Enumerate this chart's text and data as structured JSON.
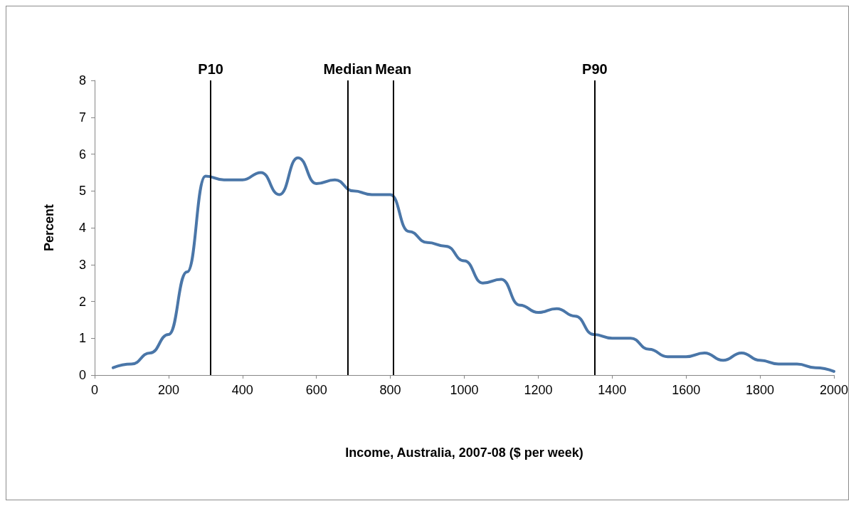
{
  "chart_data": {
    "type": "line",
    "xlabel": "Income, Australia, 2007-08 ($ per week)",
    "ylabel": "Percent",
    "x": [
      50,
      100,
      150,
      200,
      250,
      300,
      350,
      400,
      450,
      500,
      550,
      600,
      650,
      700,
      750,
      800,
      850,
      900,
      950,
      1000,
      1050,
      1100,
      1150,
      1200,
      1250,
      1300,
      1350,
      1400,
      1450,
      1500,
      1550,
      1600,
      1650,
      1700,
      1750,
      1800,
      1850,
      1900,
      1950,
      2000
    ],
    "series": [
      {
        "color": "#4a76a8",
        "values": [
          0.2,
          0.3,
          0.6,
          1.1,
          2.8,
          5.4,
          5.3,
          5.3,
          5.5,
          4.9,
          5.9,
          5.2,
          5.3,
          5.0,
          4.9,
          4.9,
          3.9,
          3.6,
          3.5,
          3.1,
          2.5,
          2.6,
          1.9,
          1.7,
          1.8,
          1.6,
          1.1,
          1.0,
          1.0,
          0.7,
          0.5,
          0.5,
          0.6,
          0.4,
          0.6,
          0.4,
          0.3,
          0.3,
          0.2,
          0.1
        ]
      }
    ],
    "xlim": [
      0,
      2000
    ],
    "xticks": [
      0,
      200,
      400,
      600,
      800,
      1000,
      1200,
      1400,
      1600,
      1800,
      2000
    ],
    "ylim": [
      0,
      8
    ],
    "yticks": [
      0,
      1,
      2,
      3,
      4,
      5,
      6,
      7,
      8
    ],
    "ref_lines": [
      {
        "axis": "x",
        "value": 314,
        "label": "P10",
        "color": "#000000"
      },
      {
        "axis": "x",
        "value": 685,
        "label": "Median",
        "color": "#000000"
      },
      {
        "axis": "x",
        "value": 808,
        "label": "Mean",
        "color": "#000000"
      },
      {
        "axis": "x",
        "value": 1353,
        "label": "P90",
        "color": "#000000"
      }
    ],
    "grid": false,
    "marker": "none",
    "line_style": "solid"
  }
}
